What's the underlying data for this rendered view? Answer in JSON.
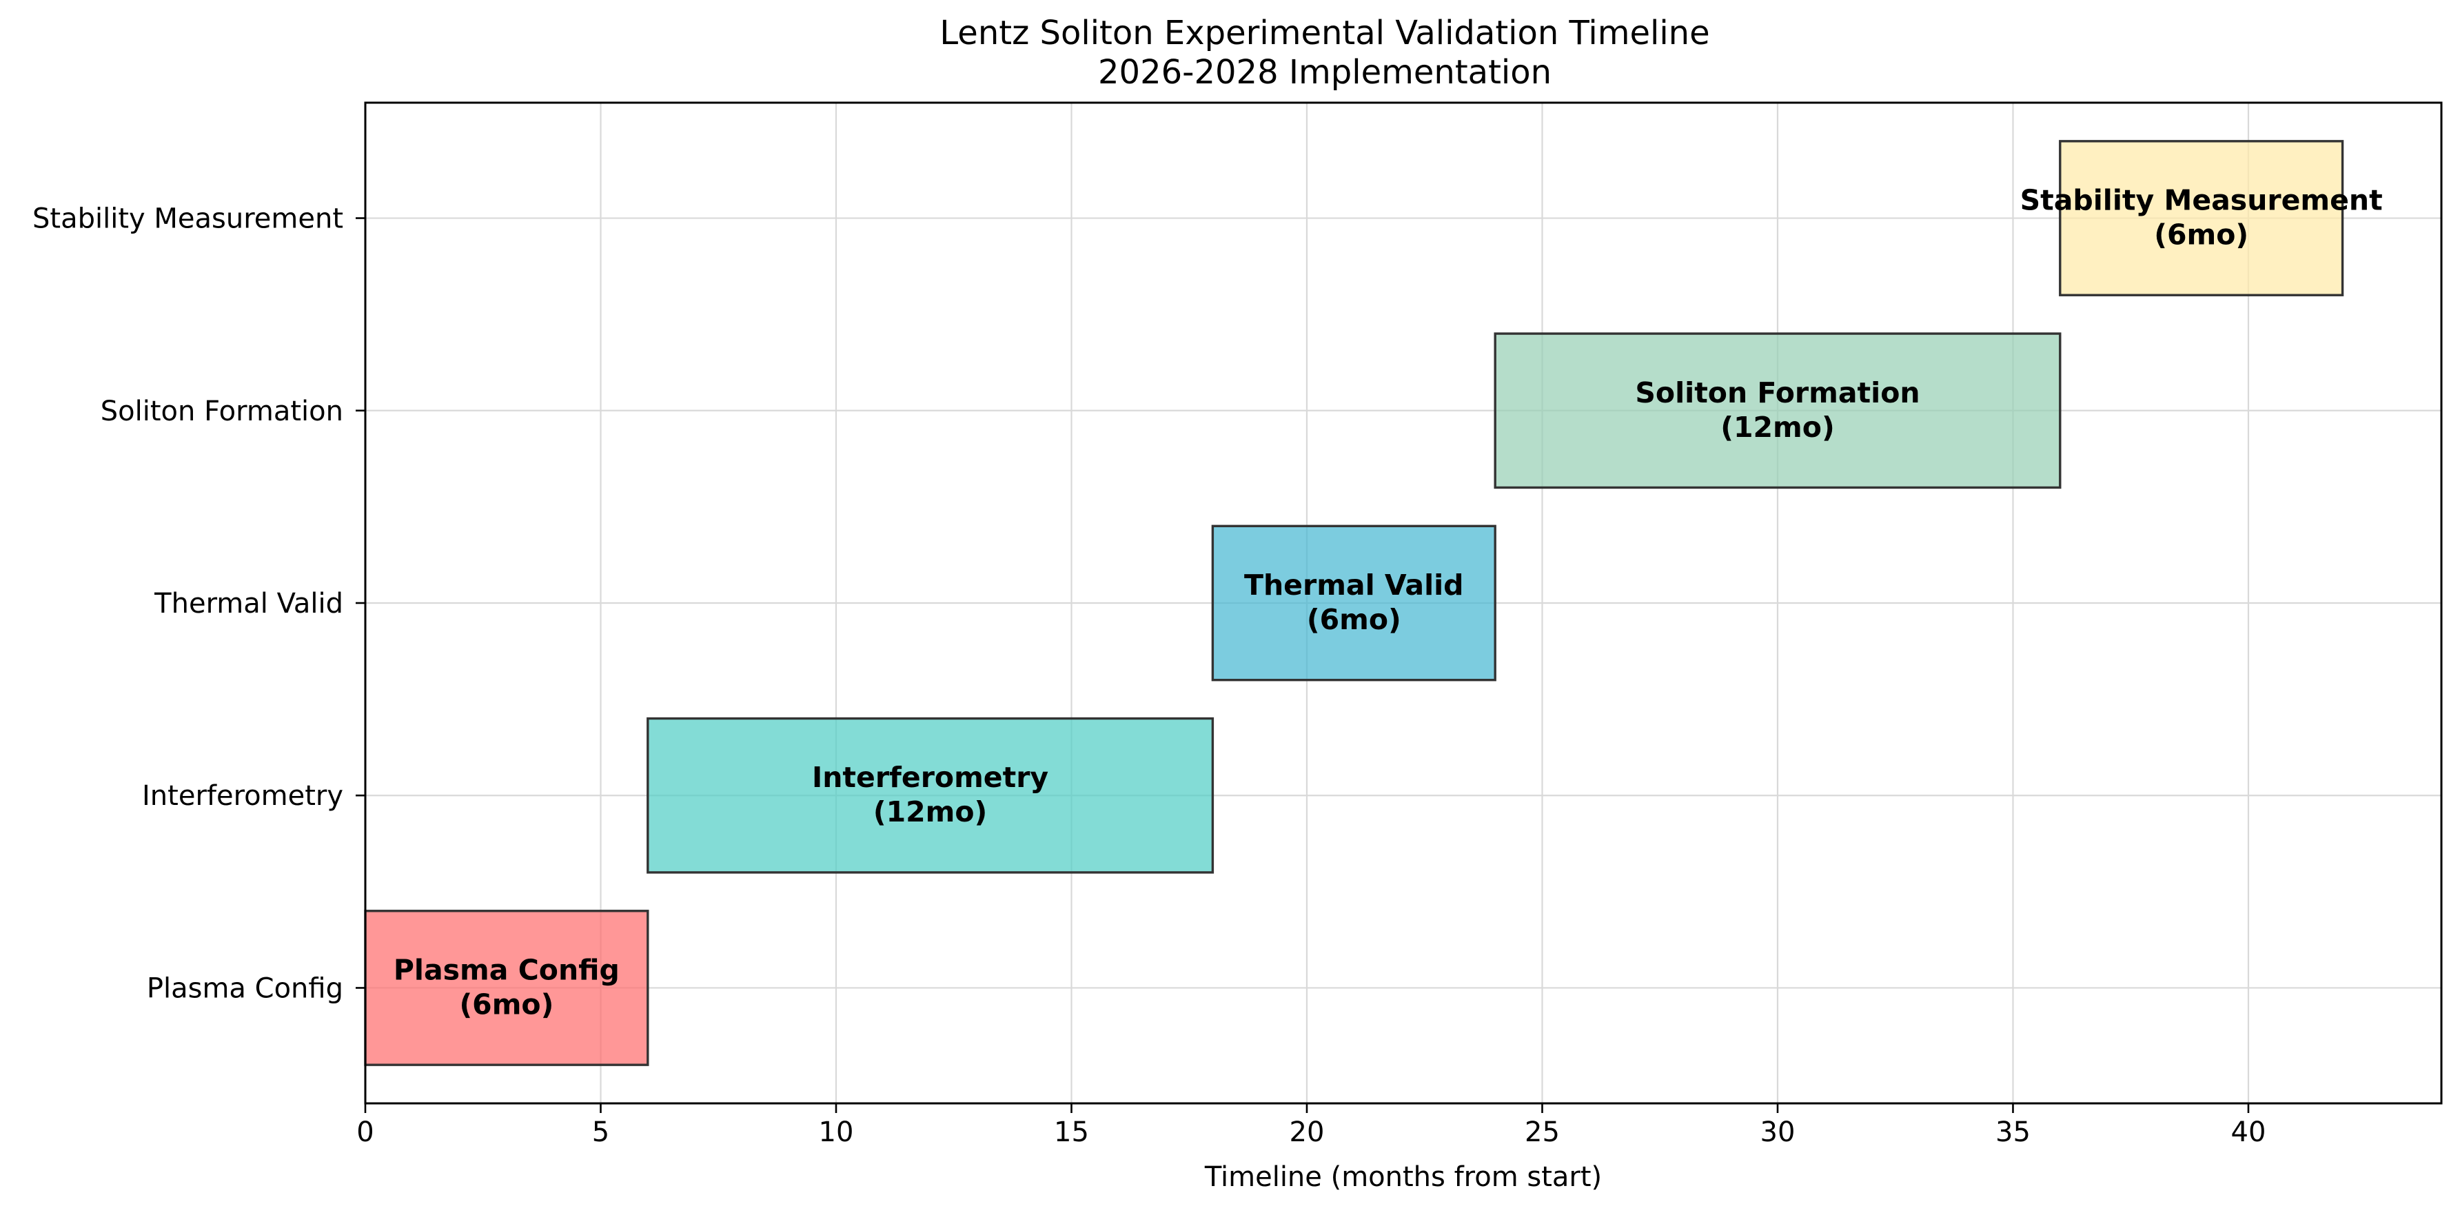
{
  "chart_data": {
    "type": "gantt",
    "title": "Lentz Soliton Experimental Validation Timeline",
    "subtitle": "2026-2028 Implementation",
    "xlabel": "Timeline (months from start)",
    "ylabel": "",
    "xlim": [
      0,
      44.1
    ],
    "grid": true,
    "xticks": [
      0,
      5,
      10,
      15,
      20,
      25,
      30,
      35,
      40
    ],
    "categories": [
      "Plasma Config",
      "Interferometry",
      "Thermal Valid",
      "Soliton Formation",
      "Stability Measurement"
    ],
    "tasks": [
      {
        "name": "Plasma Config",
        "start": 0,
        "end": 6,
        "label": "Plasma Config",
        "duration_label": "(6mo)",
        "color": "#FF6B6B"
      },
      {
        "name": "Interferometry",
        "start": 6,
        "end": 18,
        "label": "Interferometry",
        "duration_label": "(12mo)",
        "color": "#4ECDC4"
      },
      {
        "name": "Thermal Valid",
        "start": 18,
        "end": 24,
        "label": "Thermal Valid",
        "duration_label": "(6mo)",
        "color": "#45B7D1"
      },
      {
        "name": "Soliton Formation",
        "start": 24,
        "end": 36,
        "label": "Soliton Formation",
        "duration_label": "(12mo)",
        "color": "#96CEB4"
      },
      {
        "name": "Stability Measurement",
        "start": 36,
        "end": 42,
        "label": "Stability Measurement",
        "duration_label": "(6mo)",
        "color": "#FFEAA7"
      }
    ]
  }
}
